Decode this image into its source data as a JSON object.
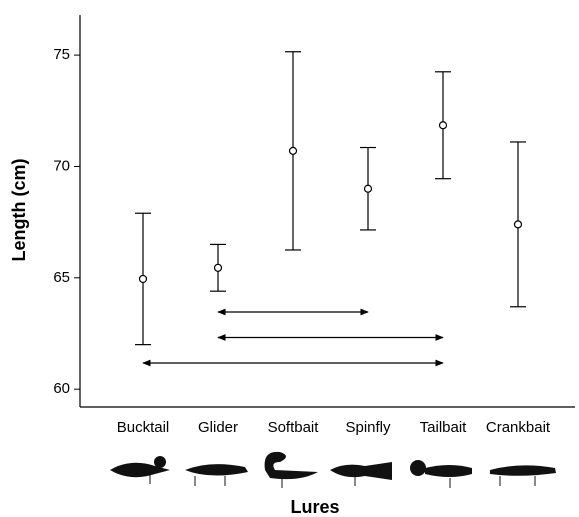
{
  "chart_data": {
    "type": "errorbar",
    "y_label": "Length (cm)",
    "x_label": "Lures",
    "categories": [
      "Bucktail",
      "Glider",
      "Softbait",
      "Spinfly",
      "Tailbait",
      "Crankbait"
    ],
    "values": [
      64.95,
      65.45,
      70.7,
      69.0,
      71.85,
      67.4
    ],
    "errors": [
      2.95,
      1.05,
      4.45,
      1.85,
      2.4,
      3.7
    ],
    "color": "#000000",
    "ylim": [
      59.2,
      76.8
    ],
    "yticks": [
      60,
      65,
      70,
      75
    ],
    "comparisons": [
      [
        1,
        3
      ],
      [
        1,
        4
      ],
      [
        0,
        4
      ]
    ]
  }
}
